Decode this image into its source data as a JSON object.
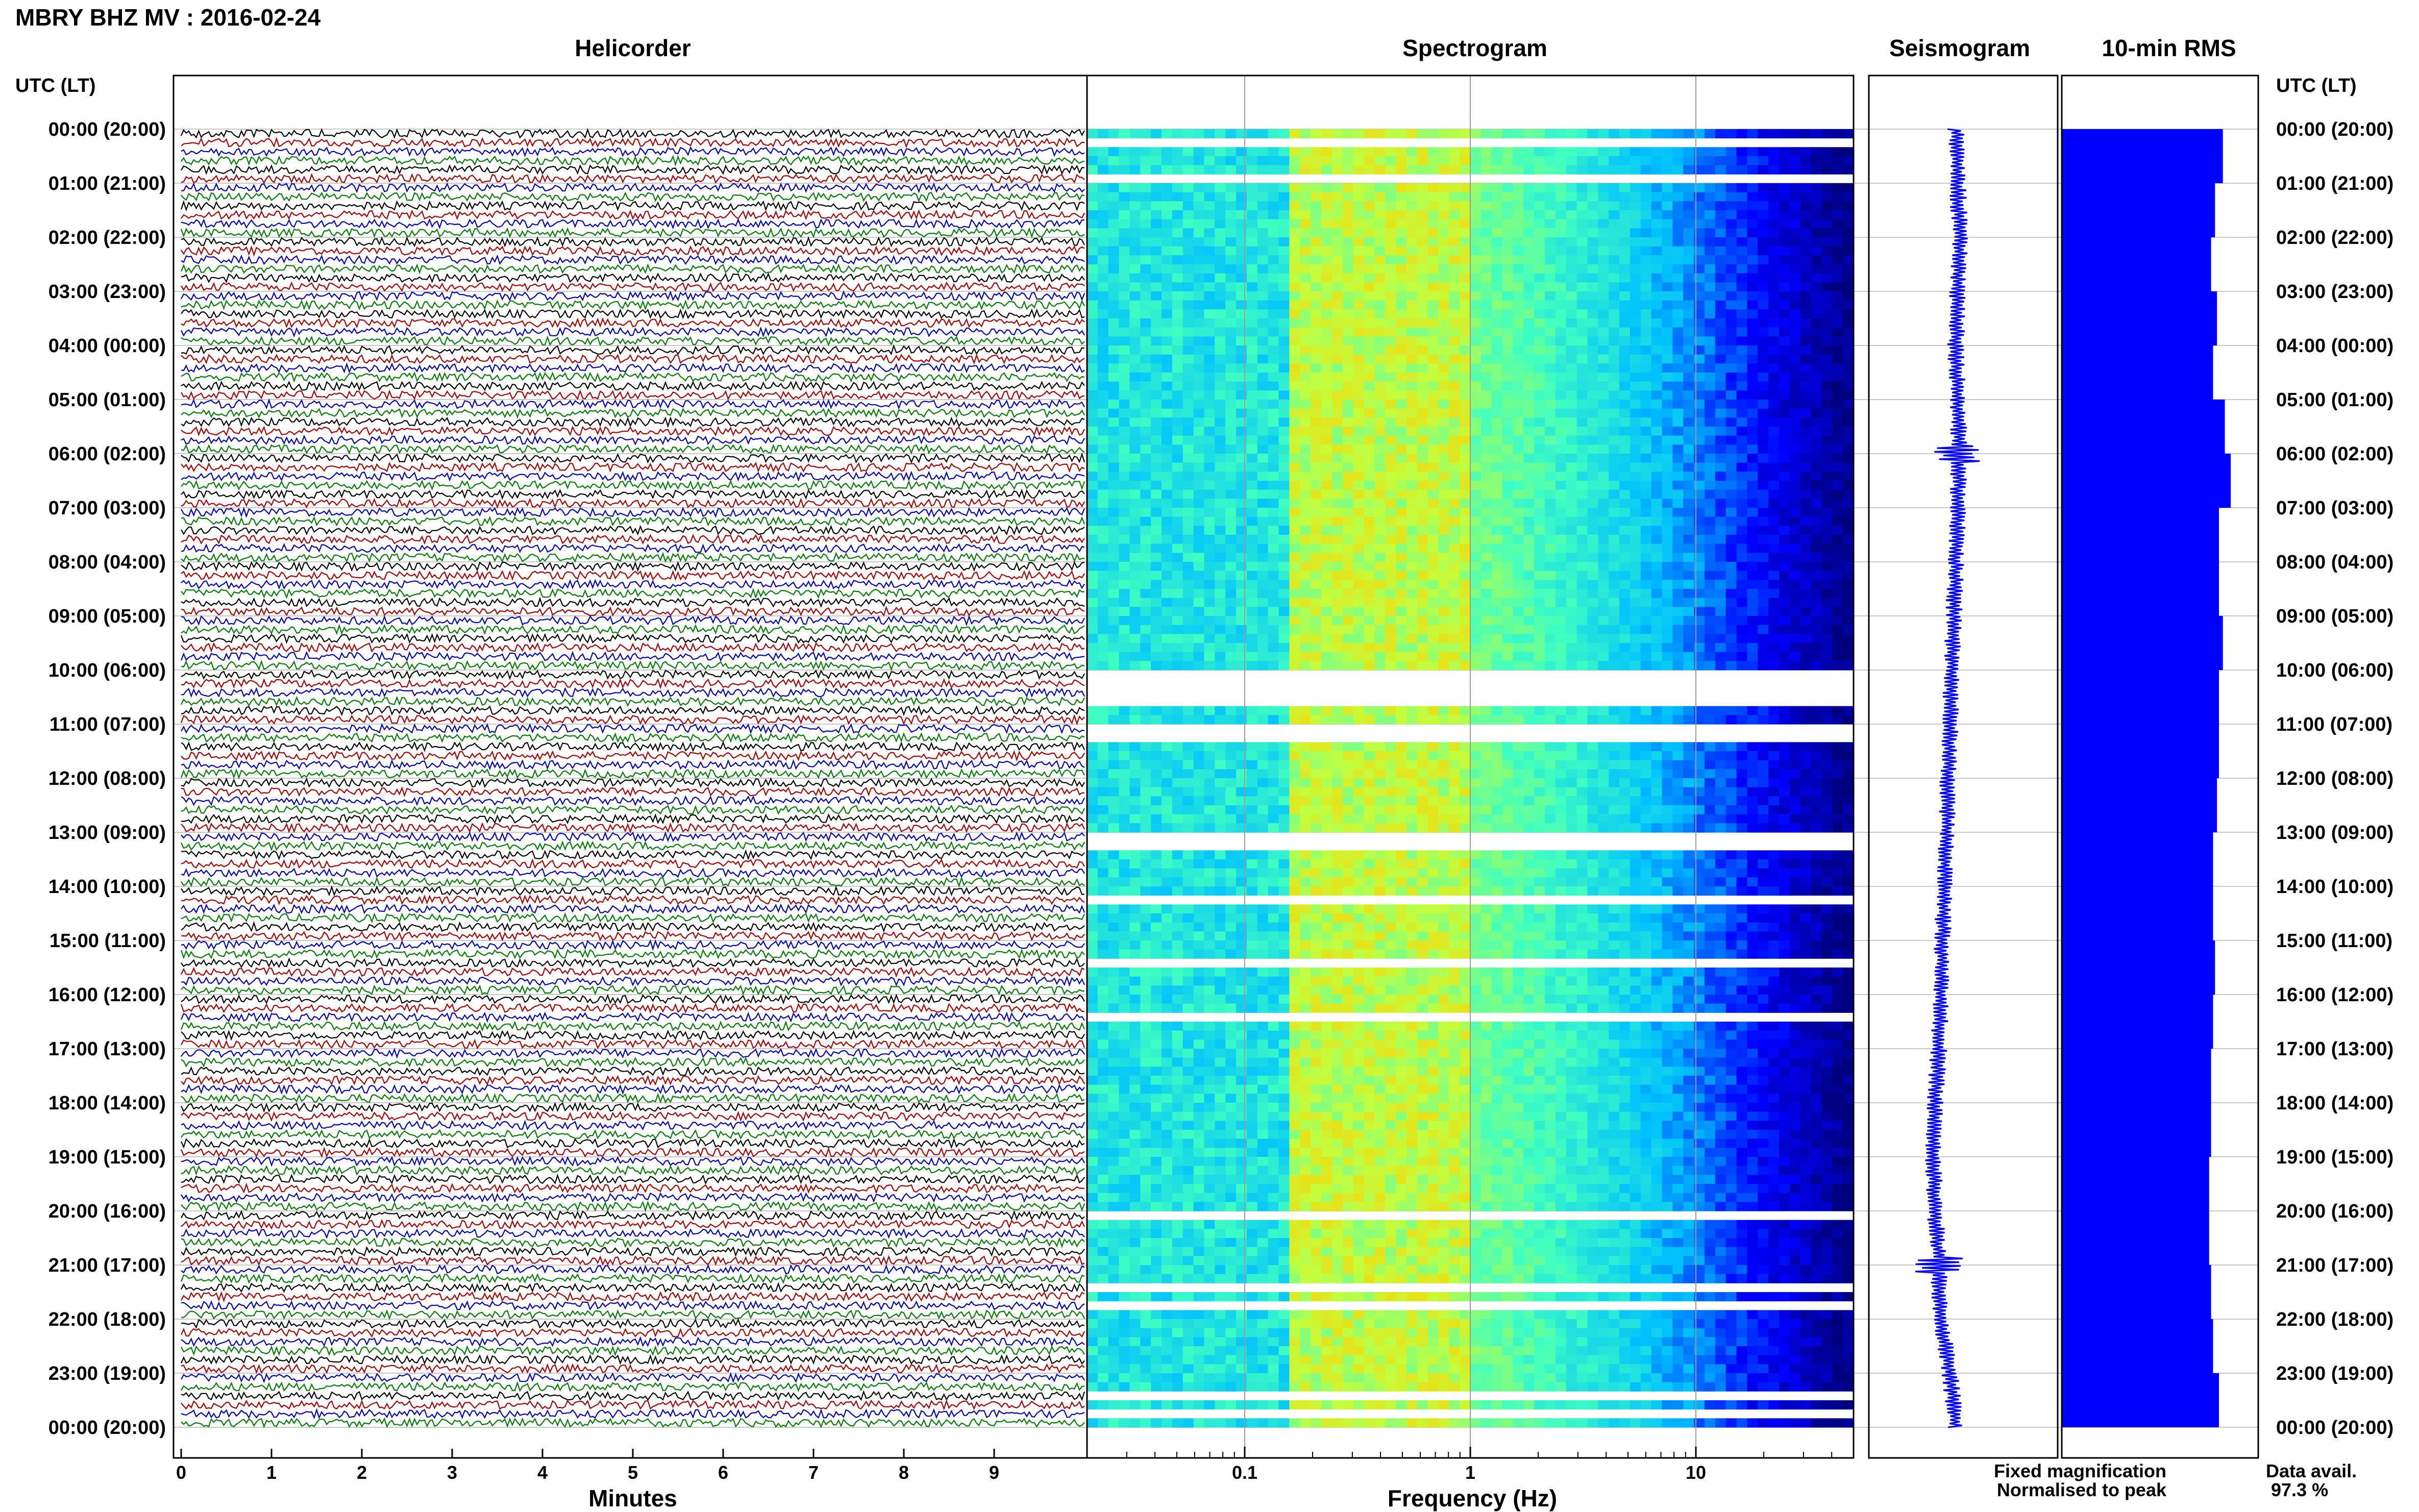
{
  "page_title": "MBRY BHZ MV : 2016-02-24",
  "panels": {
    "helicorder": "Helicorder",
    "spectrogram": "Spectrogram",
    "seismogram": "Seismogram",
    "rms": "10-min RMS"
  },
  "time_axis_label": "UTC (LT)",
  "time_labels": [
    "00:00 (20:00)",
    "01:00 (21:00)",
    "02:00 (22:00)",
    "03:00 (23:00)",
    "04:00 (00:00)",
    "05:00 (01:00)",
    "06:00 (02:00)",
    "07:00 (03:00)",
    "08:00 (04:00)",
    "09:00 (05:00)",
    "10:00 (06:00)",
    "11:00 (07:00)",
    "12:00 (08:00)",
    "13:00 (09:00)",
    "14:00 (10:00)",
    "15:00 (11:00)",
    "16:00 (12:00)",
    "17:00 (13:00)",
    "18:00 (14:00)",
    "19:00 (15:00)",
    "20:00 (16:00)",
    "21:00 (17:00)",
    "22:00 (18:00)",
    "23:00 (19:00)",
    "00:00 (20:00)"
  ],
  "helicorder_x_label": "Minutes",
  "helicorder_ticks": [
    "0",
    "1",
    "2",
    "3",
    "4",
    "5",
    "6",
    "7",
    "8",
    "9"
  ],
  "spectrogram_x_label": "Frequency (Hz)",
  "spectrogram_ticks": [
    "0.1",
    "1",
    "10"
  ],
  "legend": {
    "fixed": "Fixed magnification",
    "normalised": "Normalised to peak",
    "fixed_color": "#0000ff",
    "normalised_color": "#ff0000"
  },
  "data_avail": {
    "label": "Data avail.",
    "value": "97.3 %"
  },
  "chart_data": [
    {
      "type": "line",
      "title": "Helicorder",
      "xlabel": "Minutes",
      "xlim": [
        0,
        10
      ],
      "ylim": [
        "00:00",
        "24:00"
      ],
      "rows_per_hour": 6,
      "trace_colors": [
        "#000000",
        "#b00000",
        "#0000c8",
        "#008000"
      ]
    },
    {
      "type": "heatmap",
      "title": "Spectrogram",
      "xlabel": "Frequency (Hz)",
      "xscale": "log",
      "xlim": [
        0.02,
        50
      ],
      "colormap": [
        "#00007f",
        "#0000ff",
        "#00c0ff",
        "#40ffc0",
        "#c0ff40",
        "#ffd000"
      ],
      "peak_band_hz": [
        0.15,
        1.0
      ],
      "data_gaps_utc": [
        "00:10",
        "00:50",
        "10:00-10:40",
        "11:00",
        "11:10",
        "13:00",
        "13:10",
        "14:10-14:20",
        "15:20",
        "16:20",
        "20:00",
        "21:20",
        "21:40",
        "23:20",
        "23:40"
      ]
    },
    {
      "type": "line",
      "title": "Seismogram",
      "trend": [
        0.46,
        0.47,
        0.48,
        0.47,
        0.46,
        0.47,
        0.48,
        0.47,
        0.46,
        0.45,
        0.44,
        0.43,
        0.42,
        0.41,
        0.4,
        0.39,
        0.38,
        0.37,
        0.35,
        0.34,
        0.35,
        0.37,
        0.38,
        0.43,
        0.46
      ],
      "spike_hours": [
        6,
        21
      ]
    },
    {
      "type": "bar",
      "title": "10-min RMS",
      "orientation": "horizontal",
      "relative_values": [
        0.82,
        0.78,
        0.76,
        0.79,
        0.77,
        0.83,
        0.86,
        0.8,
        0.8,
        0.82,
        0.8,
        0.8,
        0.79,
        0.77,
        0.77,
        0.78,
        0.77,
        0.76,
        0.76,
        0.75,
        0.75,
        0.76,
        0.77,
        0.8
      ],
      "color": "#0000ff"
    }
  ]
}
